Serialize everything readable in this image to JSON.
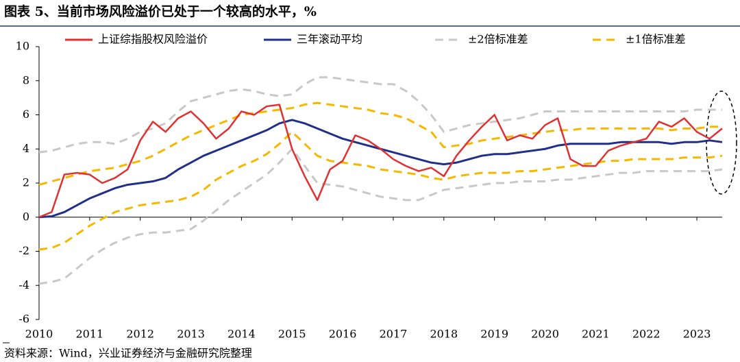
{
  "chart_data": {
    "type": "line",
    "title": "图表 5、当前市场风险溢价已处于一个较高的水平，%",
    "source": "资料来源：Wind，兴业证券经济与金融研究院整理",
    "x": [
      2010,
      2010.25,
      2010.5,
      2010.75,
      2011,
      2011.25,
      2011.5,
      2011.75,
      2012,
      2012.25,
      2012.5,
      2012.75,
      2013,
      2013.25,
      2013.5,
      2013.75,
      2014,
      2014.25,
      2014.5,
      2014.75,
      2015,
      2015.25,
      2015.5,
      2015.75,
      2016,
      2016.25,
      2016.5,
      2016.75,
      2017,
      2017.25,
      2017.5,
      2017.75,
      2018,
      2018.25,
      2018.5,
      2018.75,
      2019,
      2019.25,
      2019.5,
      2019.75,
      2020,
      2020.25,
      2020.5,
      2020.75,
      2021,
      2021.25,
      2021.5,
      2021.75,
      2022,
      2022.25,
      2022.5,
      2022.75,
      2023,
      2023.25,
      2023.5
    ],
    "xlim": [
      2010,
      2023.5
    ],
    "xticks": [
      2010,
      2011,
      2012,
      2013,
      2014,
      2015,
      2016,
      2017,
      2018,
      2019,
      2020,
      2021,
      2022,
      2023
    ],
    "ylim": [
      -6,
      10
    ],
    "yticks": [
      -6,
      -4,
      -2,
      0,
      2,
      4,
      6,
      8,
      10
    ],
    "series": [
      {
        "name": "上证综指股权风险溢价",
        "color": "#e03030",
        "dash": false,
        "values": [
          0,
          0.3,
          2.5,
          2.6,
          2.5,
          2.0,
          2.3,
          2.8,
          4.5,
          5.6,
          5.0,
          5.8,
          6.2,
          5.5,
          4.6,
          5.2,
          6.2,
          6.0,
          6.5,
          6.6,
          4.0,
          2.4,
          1.0,
          2.8,
          3.3,
          4.8,
          4.5,
          4.0,
          3.4,
          3.0,
          2.7,
          2.9,
          2.4,
          3.6,
          4.5,
          5.3,
          6.0,
          4.5,
          4.8,
          4.6,
          5.4,
          5.8,
          3.4,
          3.0,
          3.0,
          3.9,
          4.2,
          4.4,
          4.6,
          5.6,
          5.3,
          5.8,
          5.0,
          4.6,
          5.2
        ]
      },
      {
        "name": "三年滚动平均",
        "color": "#1f2f8a",
        "dash": false,
        "values": [
          0,
          0.05,
          0.3,
          0.7,
          1.1,
          1.4,
          1.7,
          1.9,
          2.0,
          2.1,
          2.3,
          2.8,
          3.2,
          3.6,
          3.9,
          4.2,
          4.5,
          4.8,
          5.1,
          5.5,
          5.7,
          5.5,
          5.2,
          4.9,
          4.6,
          4.4,
          4.2,
          4.0,
          3.8,
          3.6,
          3.4,
          3.2,
          3.1,
          3.2,
          3.4,
          3.6,
          3.7,
          3.7,
          3.8,
          3.9,
          4.0,
          4.2,
          4.3,
          4.3,
          4.3,
          4.3,
          4.4,
          4.4,
          4.4,
          4.4,
          4.3,
          4.4,
          4.4,
          4.5,
          4.4
        ]
      },
      {
        "name": "±2倍标准差",
        "color": "#c8c8c8",
        "dash": true,
        "upper": [
          3.8,
          3.9,
          4.1,
          4.3,
          4.4,
          4.4,
          4.3,
          4.6,
          5.0,
          5.2,
          5.5,
          6.2,
          6.8,
          7.0,
          7.2,
          7.4,
          7.5,
          7.4,
          7.2,
          7.1,
          7.2,
          7.8,
          8.2,
          8.2,
          8.1,
          8.0,
          7.9,
          7.8,
          7.8,
          7.4,
          6.8,
          6.0,
          5.0,
          5.2,
          5.4,
          5.5,
          5.6,
          5.7,
          5.8,
          6.0,
          6.2,
          6.2,
          6.2,
          6.2,
          6.2,
          6.2,
          6.2,
          6.2,
          6.2,
          6.2,
          6.2,
          6.2,
          6.3,
          6.3,
          6.3
        ],
        "lower": [
          -3.9,
          -3.8,
          -3.6,
          -3.0,
          -2.4,
          -1.9,
          -1.5,
          -1.2,
          -1.0,
          -0.9,
          -0.9,
          -0.8,
          -0.7,
          -0.2,
          0.4,
          1.0,
          1.5,
          2.0,
          2.5,
          3.2,
          4.0,
          3.0,
          2.0,
          1.9,
          1.8,
          1.6,
          1.4,
          1.2,
          1.1,
          1.0,
          1.0,
          1.3,
          1.6,
          1.7,
          1.8,
          1.9,
          2.0,
          2.0,
          2.1,
          2.1,
          2.1,
          2.2,
          2.2,
          2.3,
          2.4,
          2.5,
          2.6,
          2.6,
          2.7,
          2.7,
          2.7,
          2.7,
          2.7,
          2.7,
          2.8
        ]
      },
      {
        "name": "±1倍标准差",
        "color": "#f5b800",
        "dash": true,
        "upper": [
          1.9,
          2.1,
          2.3,
          2.5,
          2.7,
          2.8,
          2.9,
          3.1,
          3.3,
          3.6,
          4.0,
          4.4,
          4.8,
          5.1,
          5.4,
          5.7,
          6.0,
          6.1,
          6.2,
          6.3,
          6.4,
          6.6,
          6.7,
          6.6,
          6.5,
          6.4,
          6.3,
          6.1,
          6.0,
          5.8,
          5.4,
          5.0,
          4.1,
          4.2,
          4.3,
          4.5,
          4.6,
          4.7,
          4.8,
          4.9,
          5.0,
          5.1,
          5.1,
          5.2,
          5.2,
          5.2,
          5.2,
          5.2,
          5.2,
          5.2,
          5.1,
          5.2,
          5.2,
          5.3,
          5.3
        ],
        "lower": [
          -1.9,
          -1.8,
          -1.5,
          -1.0,
          -0.5,
          -0.1,
          0.3,
          0.5,
          0.7,
          0.8,
          0.9,
          1.0,
          1.2,
          1.6,
          2.2,
          2.6,
          3.0,
          3.3,
          3.7,
          4.3,
          5.0,
          4.3,
          3.6,
          3.3,
          3.2,
          3.1,
          3.0,
          2.8,
          2.7,
          2.6,
          2.5,
          2.3,
          2.2,
          2.4,
          2.5,
          2.6,
          2.6,
          2.6,
          2.7,
          2.7,
          2.8,
          2.9,
          3.0,
          3.1,
          3.2,
          3.3,
          3.3,
          3.4,
          3.4,
          3.4,
          3.4,
          3.5,
          3.5,
          3.5,
          3.6
        ]
      }
    ]
  }
}
